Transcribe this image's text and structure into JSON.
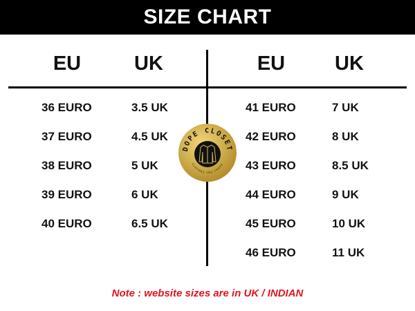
{
  "title": "SIZE CHART",
  "headers": {
    "left_eu": "EU",
    "left_uk": "UK",
    "right_eu": "EU",
    "right_uk": "UK"
  },
  "left_rows": [
    {
      "eu": "36 EURO",
      "uk": "3.5 UK"
    },
    {
      "eu": "37 EURO",
      "uk": "4.5 UK"
    },
    {
      "eu": "38 EURO",
      "uk": "5 UK"
    },
    {
      "eu": "39 EURO",
      "uk": "6 UK"
    },
    {
      "eu": "40 EURO",
      "uk": "6.5 UK"
    }
  ],
  "right_rows": [
    {
      "eu": "41 EURO",
      "uk": "7 UK"
    },
    {
      "eu": "42 EURO",
      "uk": "8 UK"
    },
    {
      "eu": "43 EURO",
      "uk": "8.5 UK"
    },
    {
      "eu": "44 EURO",
      "uk": "9 UK"
    },
    {
      "eu": "45 EURO",
      "uk": "10 UK"
    },
    {
      "eu": "46 EURO",
      "uk": "11 UK"
    }
  ],
  "logo": {
    "brand": "DOPE CLOSET",
    "tagline": "CLOTHES YOU CRAVE",
    "icon": "shirt-icon",
    "colors": {
      "gold": "#c9a53a",
      "dark": "#111111"
    }
  },
  "note": "Note : website sizes are in UK / INDIAN",
  "colors": {
    "note": "#e0141e",
    "header_bg": "#000000"
  }
}
